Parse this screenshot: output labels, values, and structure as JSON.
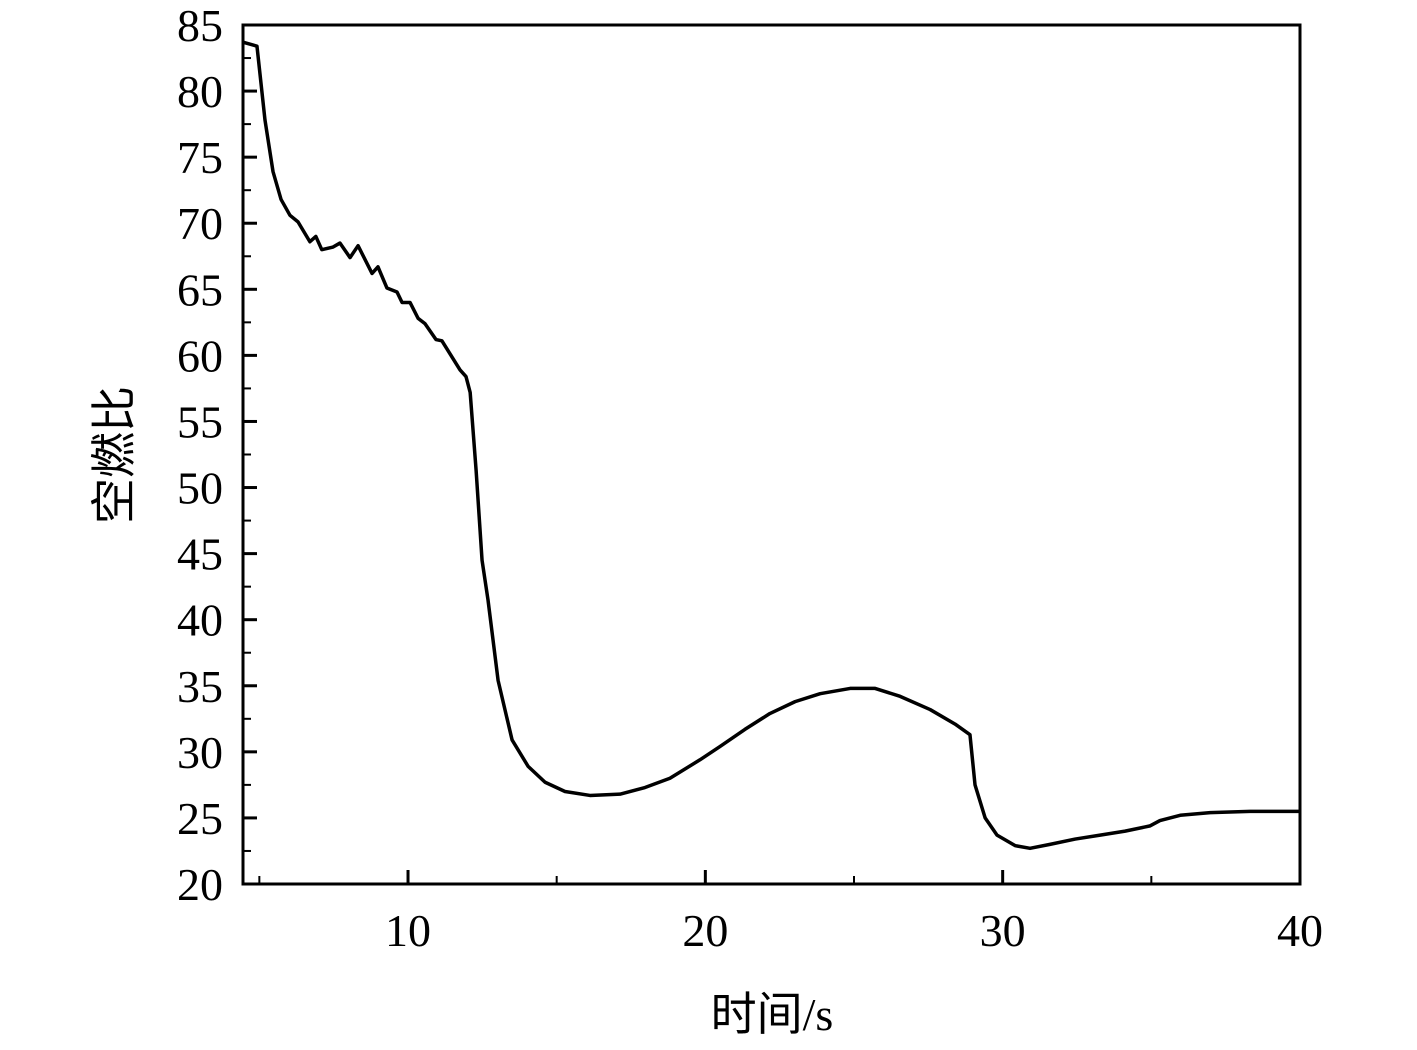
{
  "chart_data": {
    "type": "line",
    "x_label": "时间/s",
    "y_label": "空燃比",
    "color": "#000000",
    "x": [
      4.45,
      4.92,
      5.19,
      5.46,
      5.73,
      6.03,
      6.3,
      6.7,
      6.9,
      7.1,
      7.48,
      7.71,
      8.05,
      8.32,
      8.79,
      8.99,
      9.29,
      9.63,
      9.8,
      10.07,
      10.34,
      10.57,
      10.94,
      11.14,
      11.75,
      11.95,
      12.09,
      12.29,
      12.49,
      12.69,
      13.03,
      13.5,
      14.04,
      14.61,
      15.28,
      16.12,
      17.13,
      17.97,
      18.81,
      19.82,
      20.49,
      21.33,
      22.17,
      23.02,
      23.86,
      24.87,
      25.71,
      26.55,
      27.56,
      28.4,
      28.9,
      29.07,
      29.41,
      29.81,
      30.42,
      30.92,
      31.59,
      32.44,
      33.28,
      34.12,
      34.96,
      35.29,
      35.97,
      36.98,
      38.32,
      40.0
    ],
    "values": [
      83.7,
      83.4,
      77.8,
      73.9,
      71.8,
      70.6,
      70.1,
      68.6,
      69.0,
      68.0,
      68.2,
      68.5,
      67.4,
      68.3,
      66.2,
      66.7,
      65.1,
      64.8,
      64.0,
      64.0,
      62.8,
      62.4,
      61.2,
      61.1,
      58.9,
      58.4,
      57.2,
      51.3,
      44.5,
      41.5,
      35.4,
      30.9,
      28.9,
      27.7,
      27.0,
      26.7,
      26.8,
      27.3,
      28.0,
      29.4,
      30.4,
      31.7,
      32.9,
      33.8,
      34.4,
      34.8,
      34.8,
      34.2,
      33.2,
      32.1,
      31.3,
      27.5,
      25.0,
      23.7,
      22.9,
      22.7,
      23.0,
      23.4,
      23.7,
      24.0,
      24.4,
      24.8,
      25.2,
      25.4,
      25.5,
      25.5
    ],
    "xlim": [
      4.45,
      40
    ],
    "ylim": [
      20,
      85
    ],
    "xticks": [
      10,
      20,
      30,
      40
    ],
    "xminorticks": [
      5,
      15,
      25,
      35
    ],
    "yticks": [
      20,
      25,
      30,
      35,
      40,
      45,
      50,
      55,
      60,
      65,
      70,
      75,
      80,
      85
    ],
    "yminorticks": [
      22.5,
      27.5,
      32.5,
      37.5,
      42.5,
      47.5,
      52.5,
      57.5,
      62.5,
      67.5,
      72.5,
      77.5,
      82.5
    ]
  }
}
